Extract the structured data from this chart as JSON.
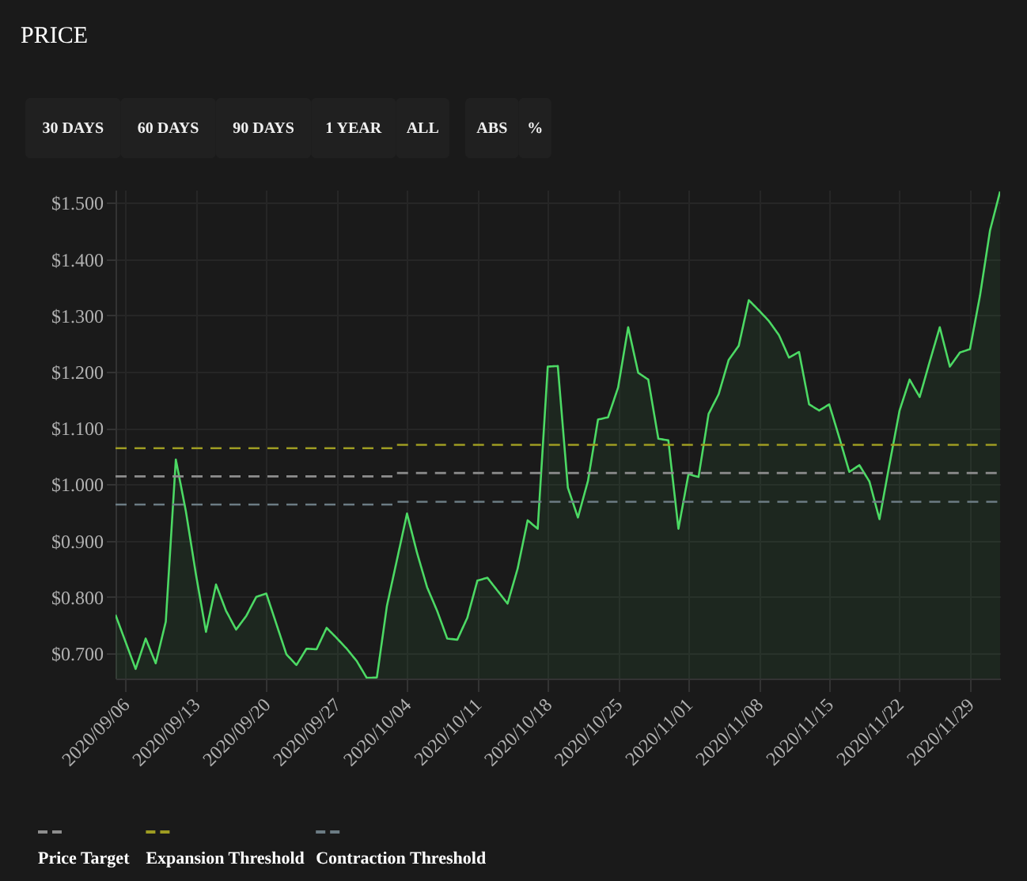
{
  "chart_data": {
    "type": "area",
    "title": "PRICE",
    "annotations": [
      "30 DAYS",
      "60 DAYS",
      "90 DAYS",
      "1 YEAR",
      "ALL",
      "ABS",
      "%"
    ],
    "x": [
      "2020-09-05",
      "2020-09-07",
      "2020-09-08",
      "2020-09-09",
      "2020-09-10",
      "2020-09-11",
      "2020-09-12",
      "2020-09-13",
      "2020-09-14",
      "2020-09-15",
      "2020-09-16",
      "2020-09-17",
      "2020-09-18",
      "2020-09-19",
      "2020-09-20",
      "2020-09-21",
      "2020-09-22",
      "2020-09-23",
      "2020-09-24",
      "2020-09-25",
      "2020-09-26",
      "2020-09-27",
      "2020-09-28",
      "2020-09-29",
      "2020-09-30",
      "2020-10-01",
      "2020-10-02",
      "2020-10-04",
      "2020-10-05",
      "2020-10-06",
      "2020-10-07",
      "2020-10-08",
      "2020-10-09",
      "2020-10-10",
      "2020-10-11",
      "2020-10-12",
      "2020-10-13",
      "2020-10-14",
      "2020-10-15",
      "2020-10-16",
      "2020-10-17",
      "2020-10-18",
      "2020-10-19",
      "2020-10-20",
      "2020-10-21",
      "2020-10-22",
      "2020-10-23",
      "2020-10-24",
      "2020-10-25",
      "2020-10-26",
      "2020-10-27",
      "2020-10-28",
      "2020-10-29",
      "2020-10-30",
      "2020-10-31",
      "2020-11-01",
      "2020-11-02",
      "2020-11-03",
      "2020-11-04",
      "2020-11-05",
      "2020-11-06",
      "2020-11-07",
      "2020-11-08",
      "2020-11-09",
      "2020-11-10",
      "2020-11-11",
      "2020-11-12",
      "2020-11-13",
      "2020-11-14",
      "2020-11-15",
      "2020-11-16",
      "2020-11-17",
      "2020-11-18",
      "2020-11-19",
      "2020-11-20",
      "2020-11-21",
      "2020-11-22",
      "2020-11-23",
      "2020-11-24",
      "2020-11-25",
      "2020-11-26",
      "2020-11-27",
      "2020-11-28",
      "2020-11-29",
      "2020-11-30",
      "2020-12-01",
      "2020-12-02"
    ],
    "series": [
      {
        "color": "#4cd964",
        "values": [
          0.768,
          0.672,
          0.726,
          0.682,
          0.756,
          1.044,
          0.952,
          0.84,
          0.738,
          0.822,
          0.775,
          0.742,
          0.766,
          0.8,
          0.806,
          0.752,
          0.698,
          0.679,
          0.708,
          0.707,
          0.745,
          0.727,
          0.708,
          0.686,
          0.656,
          0.657,
          0.784,
          0.948,
          0.878,
          0.817,
          0.775,
          0.726,
          0.724,
          0.763,
          0.829,
          0.834,
          0.811,
          0.788,
          0.85,
          0.936,
          0.921,
          1.209,
          1.21,
          0.994,
          0.941,
          1.006,
          1.115,
          1.119,
          1.172,
          1.279,
          1.198,
          1.186,
          1.081,
          1.078,
          0.921,
          1.018,
          1.013,
          1.125,
          1.16,
          1.221,
          1.246,
          1.327,
          1.309,
          1.29,
          1.265,
          1.225,
          1.235,
          1.142,
          1.131,
          1.142,
          1.083,
          1.022,
          1.034,
          1.005,
          0.938,
          1.036,
          1.131,
          1.186,
          1.155,
          1.218,
          1.279,
          1.209,
          1.234,
          1.24,
          1.335,
          1.451,
          1.52
        ]
      },
      {
        "name": "Price Target",
        "type": "step",
        "line_style": "dashed",
        "color": "#8e8e8e",
        "x": [
          "2020-09-05",
          "2020-10-03",
          "2020-12-02"
        ],
        "values": [
          1.014,
          1.02,
          1.02
        ]
      },
      {
        "name": "Expansion Threshold",
        "type": "step",
        "line_style": "dashed",
        "color": "#9e9c22",
        "x": [
          "2020-09-05",
          "2020-10-03",
          "2020-12-02"
        ],
        "values": [
          1.064,
          1.07,
          1.07
        ]
      },
      {
        "name": "Contraction Threshold",
        "type": "step",
        "line_style": "dashed",
        "color": "#6c7c84",
        "x": [
          "2020-09-05",
          "2020-10-03",
          "2020-12-02"
        ],
        "values": [
          0.964,
          0.969,
          0.969
        ]
      }
    ],
    "xlim": [
      "2020-09-05",
      "2020-12-02"
    ],
    "xticks": [
      {
        "value": "2020-09-06",
        "label": "2020/09/06"
      },
      {
        "value": "2020-09-13",
        "label": "2020/09/13"
      },
      {
        "value": "2020-09-20",
        "label": "2020/09/20"
      },
      {
        "value": "2020-09-27",
        "label": "2020/09/27"
      },
      {
        "value": "2020-10-04",
        "label": "2020/10/04"
      },
      {
        "value": "2020-10-11",
        "label": "2020/10/11"
      },
      {
        "value": "2020-10-18",
        "label": "2020/10/18"
      },
      {
        "value": "2020-10-25",
        "label": "2020/10/25"
      },
      {
        "value": "2020-11-01",
        "label": "2020/11/01"
      },
      {
        "value": "2020-11-08",
        "label": "2020/11/08"
      },
      {
        "value": "2020-11-15",
        "label": "2020/11/15"
      },
      {
        "value": "2020-11-22",
        "label": "2020/11/22"
      },
      {
        "value": "2020-11-29",
        "label": "2020/11/29"
      }
    ],
    "ylim": [
      0.655,
      1.523
    ],
    "yticks": [
      {
        "value": 0.7,
        "label": "$0.700"
      },
      {
        "value": 0.8,
        "label": "$0.800"
      },
      {
        "value": 0.9,
        "label": "$0.900"
      },
      {
        "value": 1.0,
        "label": "$1.000"
      },
      {
        "value": 1.1,
        "label": "$1.100"
      },
      {
        "value": 1.2,
        "label": "$1.200"
      },
      {
        "value": 1.3,
        "label": "$1.300"
      },
      {
        "value": 1.4,
        "label": "$1.400"
      },
      {
        "value": 1.5,
        "label": "$1.500"
      }
    ],
    "grid": true,
    "legend": "bottom left"
  }
}
